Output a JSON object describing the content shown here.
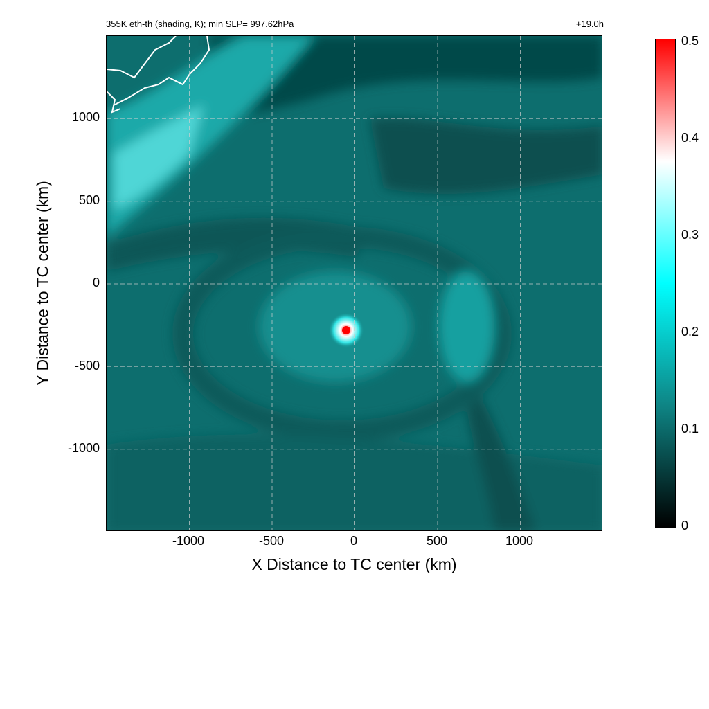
{
  "title_left": "355K eth-th (shading, K); min SLP= 997.62hPa",
  "title_right": "+19.0h",
  "chart_data": {
    "type": "heatmap",
    "title": "355K eth-th (shading, K); min SLP= 997.62hPa",
    "valid_time": "+19.0h",
    "xlabel": "X Distance to TC center (km)",
    "ylabel": "Y Distance to TC center (km)",
    "xlim": [
      -1500,
      1500
    ],
    "ylim": [
      -1500,
      1500
    ],
    "xticks": [
      "-1000",
      "-500",
      "0",
      "500",
      "1000"
    ],
    "yticks": [
      "1000",
      "500",
      "0",
      "-500",
      "-1000"
    ],
    "grid": true,
    "colorbar": {
      "ticks": [
        "0.5",
        "0.4",
        "0.3",
        "0.2",
        "0.1",
        "0"
      ],
      "range": [
        0,
        0.5
      ],
      "colors": [
        "#000000",
        "#0e8585",
        "#00ffff",
        "#ffffff",
        "#ff0000"
      ]
    },
    "features": [
      {
        "label": "TC core maximum",
        "x": -50,
        "y": -280,
        "value": 0.5
      },
      {
        "label": "high values NW band",
        "x": -1250,
        "y": 700,
        "value": 0.2
      }
    ]
  }
}
